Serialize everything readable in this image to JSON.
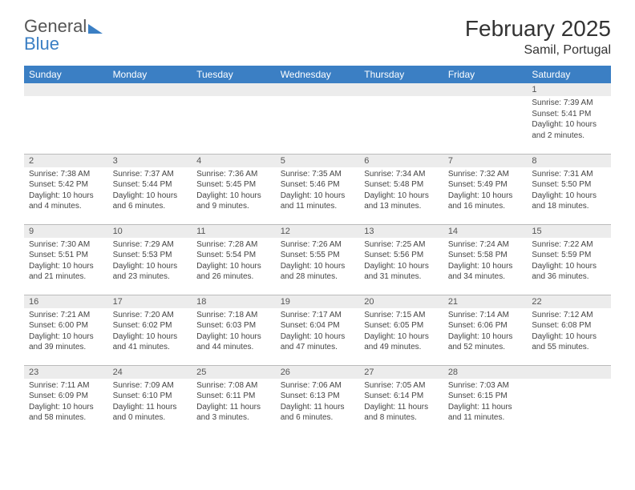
{
  "brand": {
    "part1": "General",
    "part2": "Blue"
  },
  "title": "February 2025",
  "location": "Samil, Portugal",
  "colors": {
    "header_bg": "#3b7fc4",
    "header_text": "#ffffff",
    "daynum_bg": "#ececec",
    "border": "#bbbbbb",
    "text": "#444444",
    "title_text": "#333333"
  },
  "weekdays": [
    "Sunday",
    "Monday",
    "Tuesday",
    "Wednesday",
    "Thursday",
    "Friday",
    "Saturday"
  ],
  "weeks": [
    [
      {
        "n": "",
        "sr": "",
        "ss": "",
        "dl": ""
      },
      {
        "n": "",
        "sr": "",
        "ss": "",
        "dl": ""
      },
      {
        "n": "",
        "sr": "",
        "ss": "",
        "dl": ""
      },
      {
        "n": "",
        "sr": "",
        "ss": "",
        "dl": ""
      },
      {
        "n": "",
        "sr": "",
        "ss": "",
        "dl": ""
      },
      {
        "n": "",
        "sr": "",
        "ss": "",
        "dl": ""
      },
      {
        "n": "1",
        "sr": "Sunrise: 7:39 AM",
        "ss": "Sunset: 5:41 PM",
        "dl": "Daylight: 10 hours and 2 minutes."
      }
    ],
    [
      {
        "n": "2",
        "sr": "Sunrise: 7:38 AM",
        "ss": "Sunset: 5:42 PM",
        "dl": "Daylight: 10 hours and 4 minutes."
      },
      {
        "n": "3",
        "sr": "Sunrise: 7:37 AM",
        "ss": "Sunset: 5:44 PM",
        "dl": "Daylight: 10 hours and 6 minutes."
      },
      {
        "n": "4",
        "sr": "Sunrise: 7:36 AM",
        "ss": "Sunset: 5:45 PM",
        "dl": "Daylight: 10 hours and 9 minutes."
      },
      {
        "n": "5",
        "sr": "Sunrise: 7:35 AM",
        "ss": "Sunset: 5:46 PM",
        "dl": "Daylight: 10 hours and 11 minutes."
      },
      {
        "n": "6",
        "sr": "Sunrise: 7:34 AM",
        "ss": "Sunset: 5:48 PM",
        "dl": "Daylight: 10 hours and 13 minutes."
      },
      {
        "n": "7",
        "sr": "Sunrise: 7:32 AM",
        "ss": "Sunset: 5:49 PM",
        "dl": "Daylight: 10 hours and 16 minutes."
      },
      {
        "n": "8",
        "sr": "Sunrise: 7:31 AM",
        "ss": "Sunset: 5:50 PM",
        "dl": "Daylight: 10 hours and 18 minutes."
      }
    ],
    [
      {
        "n": "9",
        "sr": "Sunrise: 7:30 AM",
        "ss": "Sunset: 5:51 PM",
        "dl": "Daylight: 10 hours and 21 minutes."
      },
      {
        "n": "10",
        "sr": "Sunrise: 7:29 AM",
        "ss": "Sunset: 5:53 PM",
        "dl": "Daylight: 10 hours and 23 minutes."
      },
      {
        "n": "11",
        "sr": "Sunrise: 7:28 AM",
        "ss": "Sunset: 5:54 PM",
        "dl": "Daylight: 10 hours and 26 minutes."
      },
      {
        "n": "12",
        "sr": "Sunrise: 7:26 AM",
        "ss": "Sunset: 5:55 PM",
        "dl": "Daylight: 10 hours and 28 minutes."
      },
      {
        "n": "13",
        "sr": "Sunrise: 7:25 AM",
        "ss": "Sunset: 5:56 PM",
        "dl": "Daylight: 10 hours and 31 minutes."
      },
      {
        "n": "14",
        "sr": "Sunrise: 7:24 AM",
        "ss": "Sunset: 5:58 PM",
        "dl": "Daylight: 10 hours and 34 minutes."
      },
      {
        "n": "15",
        "sr": "Sunrise: 7:22 AM",
        "ss": "Sunset: 5:59 PM",
        "dl": "Daylight: 10 hours and 36 minutes."
      }
    ],
    [
      {
        "n": "16",
        "sr": "Sunrise: 7:21 AM",
        "ss": "Sunset: 6:00 PM",
        "dl": "Daylight: 10 hours and 39 minutes."
      },
      {
        "n": "17",
        "sr": "Sunrise: 7:20 AM",
        "ss": "Sunset: 6:02 PM",
        "dl": "Daylight: 10 hours and 41 minutes."
      },
      {
        "n": "18",
        "sr": "Sunrise: 7:18 AM",
        "ss": "Sunset: 6:03 PM",
        "dl": "Daylight: 10 hours and 44 minutes."
      },
      {
        "n": "19",
        "sr": "Sunrise: 7:17 AM",
        "ss": "Sunset: 6:04 PM",
        "dl": "Daylight: 10 hours and 47 minutes."
      },
      {
        "n": "20",
        "sr": "Sunrise: 7:15 AM",
        "ss": "Sunset: 6:05 PM",
        "dl": "Daylight: 10 hours and 49 minutes."
      },
      {
        "n": "21",
        "sr": "Sunrise: 7:14 AM",
        "ss": "Sunset: 6:06 PM",
        "dl": "Daylight: 10 hours and 52 minutes."
      },
      {
        "n": "22",
        "sr": "Sunrise: 7:12 AM",
        "ss": "Sunset: 6:08 PM",
        "dl": "Daylight: 10 hours and 55 minutes."
      }
    ],
    [
      {
        "n": "23",
        "sr": "Sunrise: 7:11 AM",
        "ss": "Sunset: 6:09 PM",
        "dl": "Daylight: 10 hours and 58 minutes."
      },
      {
        "n": "24",
        "sr": "Sunrise: 7:09 AM",
        "ss": "Sunset: 6:10 PM",
        "dl": "Daylight: 11 hours and 0 minutes."
      },
      {
        "n": "25",
        "sr": "Sunrise: 7:08 AM",
        "ss": "Sunset: 6:11 PM",
        "dl": "Daylight: 11 hours and 3 minutes."
      },
      {
        "n": "26",
        "sr": "Sunrise: 7:06 AM",
        "ss": "Sunset: 6:13 PM",
        "dl": "Daylight: 11 hours and 6 minutes."
      },
      {
        "n": "27",
        "sr": "Sunrise: 7:05 AM",
        "ss": "Sunset: 6:14 PM",
        "dl": "Daylight: 11 hours and 8 minutes."
      },
      {
        "n": "28",
        "sr": "Sunrise: 7:03 AM",
        "ss": "Sunset: 6:15 PM",
        "dl": "Daylight: 11 hours and 11 minutes."
      },
      {
        "n": "",
        "sr": "",
        "ss": "",
        "dl": ""
      }
    ]
  ]
}
